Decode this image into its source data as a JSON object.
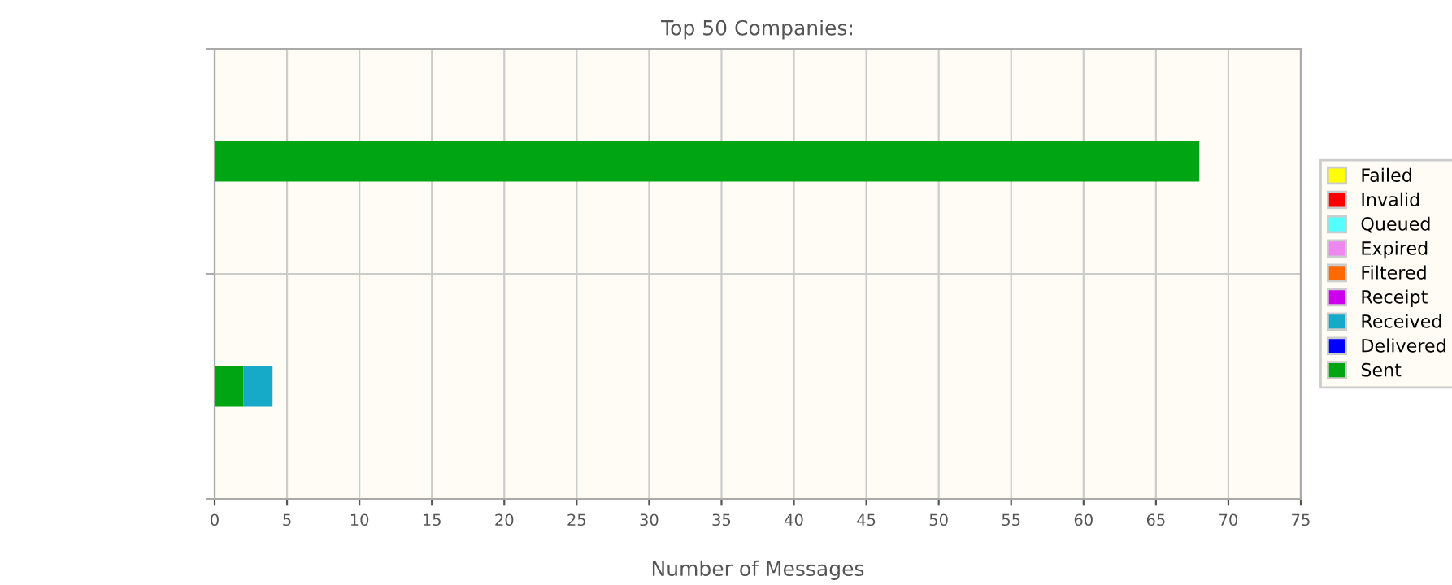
{
  "chart_data": {
    "type": "bar",
    "orientation": "horizontal",
    "stacked": true,
    "title": "Top 50 Companies:",
    "xlabel": "Number of Messages",
    "categories": [
      null,
      null
    ],
    "series": [
      {
        "name": "Sent",
        "color": "#00a513",
        "values": [
          68,
          2
        ]
      },
      {
        "name": "Delivered",
        "color": "#0000ff",
        "values": [
          0,
          0
        ]
      },
      {
        "name": "Received",
        "color": "#17aac8",
        "values": [
          0,
          2
        ]
      },
      {
        "name": "Receipt",
        "color": "#cc00ee",
        "values": [
          0,
          0
        ]
      },
      {
        "name": "Filtered",
        "color": "#ff6a00",
        "values": [
          0,
          0
        ]
      },
      {
        "name": "Expired",
        "color": "#ee88ee",
        "values": [
          0,
          0
        ]
      },
      {
        "name": "Queued",
        "color": "#55ffff",
        "values": [
          0,
          0
        ]
      },
      {
        "name": "Invalid",
        "color": "#ff0000",
        "values": [
          0,
          0
        ]
      },
      {
        "name": "Failed",
        "color": "#ffff00",
        "values": [
          0,
          0
        ]
      }
    ],
    "xlim": [
      0,
      75
    ],
    "xticks": [
      0,
      5,
      10,
      15,
      20,
      25,
      30,
      35,
      40,
      45,
      50,
      55,
      60,
      65,
      70,
      75
    ],
    "grid": true,
    "legend": "right"
  }
}
